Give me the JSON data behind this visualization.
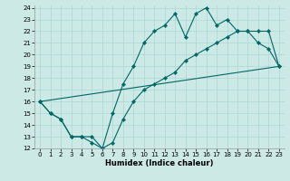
{
  "xlabel": "Humidex (Indice chaleur)",
  "bg_color": "#cce9e6",
  "line_color": "#006666",
  "grid_color": "#aad9d4",
  "xlim": [
    -0.5,
    23.5
  ],
  "ylim": [
    12,
    24.2
  ],
  "xticks": [
    0,
    1,
    2,
    3,
    4,
    5,
    6,
    7,
    8,
    9,
    10,
    11,
    12,
    13,
    14,
    15,
    16,
    17,
    18,
    19,
    20,
    21,
    22,
    23
  ],
  "yticks": [
    12,
    13,
    14,
    15,
    16,
    17,
    18,
    19,
    20,
    21,
    22,
    23,
    24
  ],
  "line1_x": [
    0,
    1,
    2,
    3,
    4,
    5,
    6,
    7,
    8,
    9,
    10,
    11,
    12,
    13,
    14,
    15,
    16,
    17,
    18,
    19,
    20,
    21,
    22,
    23
  ],
  "line1_y": [
    16,
    15,
    14.5,
    13,
    13,
    12.5,
    12,
    15,
    17.5,
    19,
    21,
    22,
    22.5,
    23.5,
    21.5,
    23.5,
    24,
    22.5,
    23,
    22,
    22,
    21,
    20.5,
    19
  ],
  "line2_x": [
    0,
    1,
    2,
    3,
    4,
    5,
    6,
    7,
    8,
    9,
    10,
    11,
    12,
    13,
    14,
    15,
    16,
    17,
    18,
    19,
    20,
    21,
    22,
    23
  ],
  "line2_y": [
    16,
    15,
    14.5,
    13,
    13,
    13,
    12,
    12.5,
    14.5,
    16,
    17,
    17.5,
    18,
    18.5,
    19.5,
    20,
    20.5,
    21,
    21.5,
    22,
    22,
    22,
    22,
    19
  ],
  "line3_x": [
    0,
    23
  ],
  "line3_y": [
    16,
    19
  ]
}
